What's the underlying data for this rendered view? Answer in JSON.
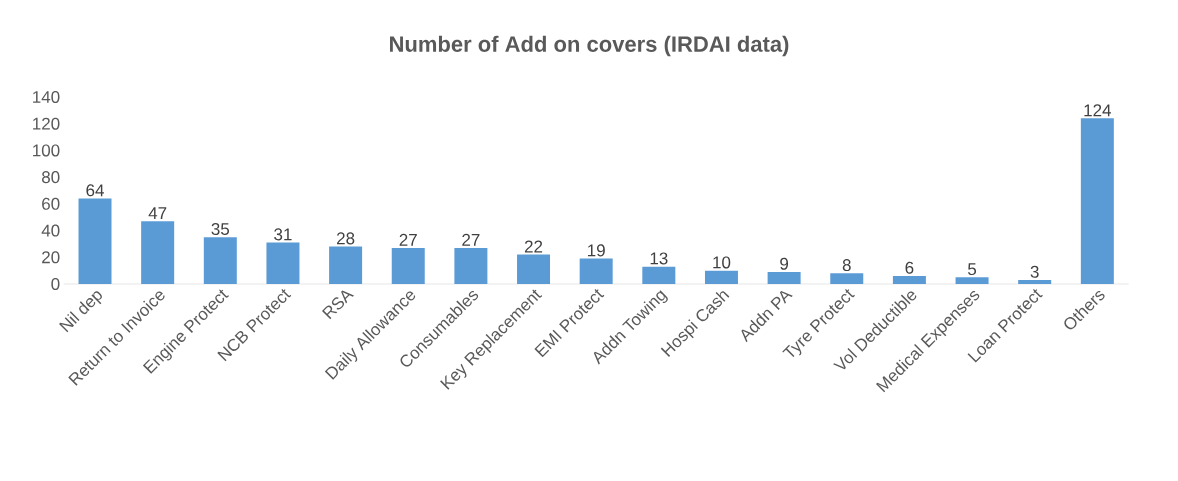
{
  "chart_data": {
    "type": "bar",
    "title": "Number of Add on covers (IRDAI data)",
    "categories": [
      "Nil dep",
      "Return to Invoice",
      "Engine Protect",
      "NCB Protect",
      "RSA",
      "Daily Allowance",
      "Consumables",
      "Key Replacement",
      "EMI Protect",
      "Addn Towing",
      "Hospi Cash",
      "Addn PA",
      "Tyre Protect",
      "Vol Deductible",
      "Medical Expenses",
      "Loan Protect",
      "Others"
    ],
    "values": [
      64,
      47,
      35,
      31,
      28,
      27,
      27,
      22,
      19,
      13,
      10,
      9,
      8,
      6,
      5,
      3,
      124
    ],
    "color": "#5b9bd5",
    "ylim": [
      0,
      140
    ],
    "yticks": [
      0,
      20,
      40,
      60,
      80,
      100,
      120,
      140
    ],
    "grid": false,
    "data_labels": true
  }
}
